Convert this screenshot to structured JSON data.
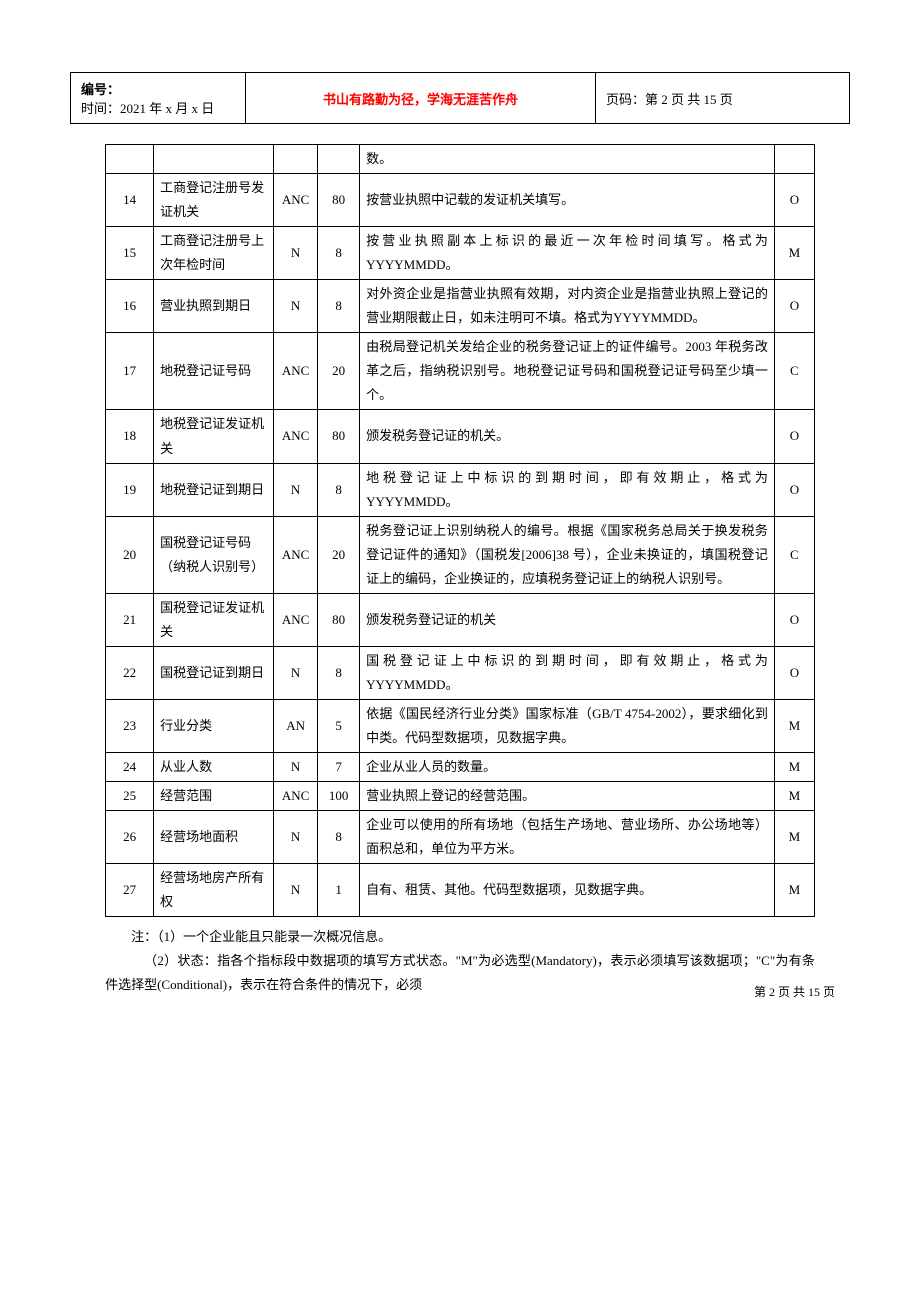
{
  "header": {
    "id_label": "编号：",
    "time_label": "时间：2021 年 x 月 x 日",
    "slogan": "书山有路勤为径，学海无涯苦作舟",
    "page_label": "页码：第 2 页 共 15 页",
    "slogan_color": "#ff0000"
  },
  "table": {
    "partial_row": {
      "desc": "数。"
    },
    "rows": [
      {
        "idx": "14",
        "name": "工商登记注册号发证机关",
        "type": "ANC",
        "len": "80",
        "desc": "按营业执照中记载的发证机关填写。",
        "flag": "O"
      },
      {
        "idx": "15",
        "name": "工商登记注册号上次年检时间",
        "type": "N",
        "len": "8",
        "desc": "按营业执照副本上标识的最近一次年检时间填写。格式为 YYYYMMDD。",
        "flag": "M"
      },
      {
        "idx": "16",
        "name": "营业执照到期日",
        "type": "N",
        "len": "8",
        "desc": "对外资企业是指营业执照有效期，对内资企业是指营业执照上登记的营业期限截止日，如未注明可不填。格式为YYYYMMDD。",
        "flag": "O"
      },
      {
        "idx": "17",
        "name": "地税登记证号码",
        "type": "ANC",
        "len": "20",
        "desc": "由税局登记机关发给企业的税务登记证上的证件编号。2003 年税务改革之后，指纳税识别号。地税登记证号码和国税登记证号码至少填一个。",
        "flag": "C"
      },
      {
        "idx": "18",
        "name": "地税登记证发证机关",
        "type": "ANC",
        "len": "80",
        "desc": "颁发税务登记证的机关。",
        "flag": "O"
      },
      {
        "idx": "19",
        "name": "地税登记证到期日",
        "type": "N",
        "len": "8",
        "desc": "地税登记证上中标识的到期时间，即有效期止，格式为 YYYYMMDD。",
        "flag": "O"
      },
      {
        "idx": "20",
        "name": "国税登记证号码（纳税人识别号）",
        "type": "ANC",
        "len": "20",
        "desc": "税务登记证上识别纳税人的编号。根据《国家税务总局关于换发税务登记证件的通知》（国税发[2006]38 号），企业未换证的，填国税登记证上的编码，企业换证的，应填税务登记证上的纳税人识别号。",
        "flag": "C"
      },
      {
        "idx": "21",
        "name": "国税登记证发证机关",
        "type": "ANC",
        "len": "80",
        "desc": "颁发税务登记证的机关",
        "flag": "O"
      },
      {
        "idx": "22",
        "name": "国税登记证到期日",
        "type": "N",
        "len": "8",
        "desc": "国税登记证上中标识的到期时间，即有效期止，格式为 YYYYMMDD。",
        "flag": "O"
      },
      {
        "idx": "23",
        "name": "行业分类",
        "type": "AN",
        "len": "5",
        "desc": "依据《国民经济行业分类》国家标准（GB/T 4754-2002），要求细化到中类。代码型数据项，见数据字典。",
        "flag": "M"
      },
      {
        "idx": "24",
        "name": "从业人数",
        "type": "N",
        "len": "7",
        "desc": "企业从业人员的数量。",
        "flag": "M"
      },
      {
        "idx": "25",
        "name": "经营范围",
        "type": "ANC",
        "len": "100",
        "desc": "营业执照上登记的经营范围。",
        "flag": "M"
      },
      {
        "idx": "26",
        "name": "经营场地面积",
        "type": "N",
        "len": "8",
        "desc": "企业可以使用的所有场地（包括生产场地、营业场所、办公场地等）面积总和，单位为平方米。",
        "flag": "M"
      },
      {
        "idx": "27",
        "name": "经营场地房产所有权",
        "type": "N",
        "len": "1",
        "desc": "自有、租赁、其他。代码型数据项，见数据字典。",
        "flag": "M"
      }
    ]
  },
  "notes": {
    "line1": "注：（1）一个企业能且只能录一次概况信息。",
    "line2": "（2）状态：指各个指标段中数据项的填写方式状态。\"M\"为必选型(Mandatory)，表示必须填写该数据项；\"C\"为有条件选择型(Conditional)，表示在符合条件的情况下，必须"
  },
  "footer": {
    "text": "第 2 页 共 15 页"
  }
}
